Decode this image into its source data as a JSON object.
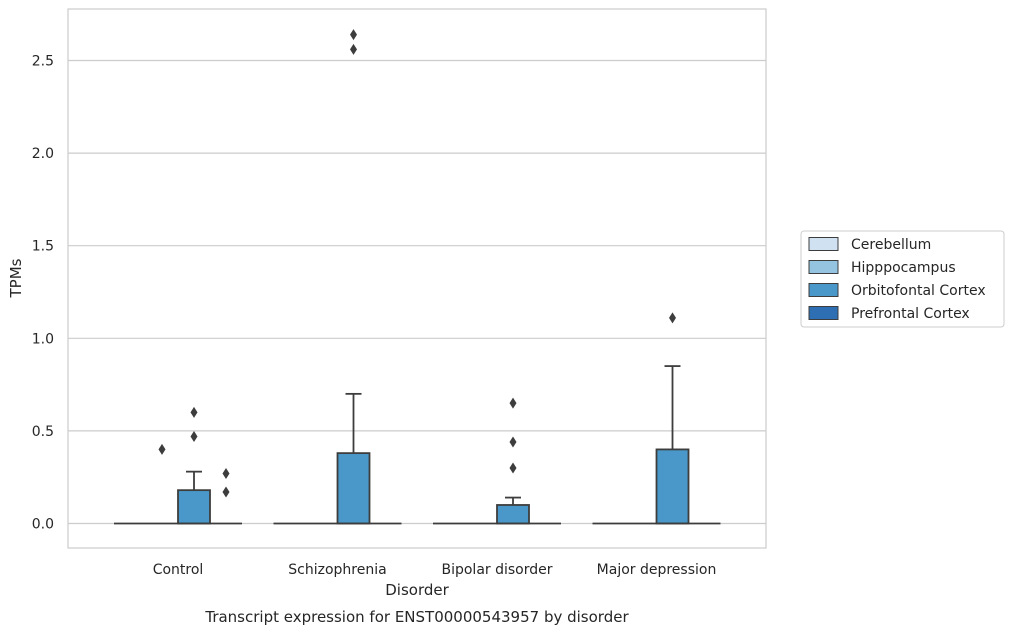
{
  "chart_data": {
    "type": "box",
    "title": "Transcript expression for ENST00000543957 by disorder",
    "xlabel": "Disorder",
    "ylabel": "TPMs",
    "ylim": [
      -0.13,
      2.78
    ],
    "yticks": [
      {
        "value": 0.0,
        "label": "0.0"
      },
      {
        "value": 0.5,
        "label": "0.5"
      },
      {
        "value": 1.0,
        "label": "1.0"
      },
      {
        "value": 1.5,
        "label": "1.5"
      },
      {
        "value": 2.0,
        "label": "2.0"
      },
      {
        "value": 2.5,
        "label": "2.5"
      }
    ],
    "grid": "horizontal",
    "legend_position": "right",
    "categories": [
      "Control",
      "Schizophrenia",
      "Bipolar disorder",
      "Major depression"
    ],
    "series": [
      {
        "name": "Cerebellum",
        "color": "#d0e1f2",
        "boxes": [
          {
            "q1": 0,
            "median": 0,
            "q3": 0,
            "whisker_low": 0,
            "whisker_high": 0,
            "outliers": []
          },
          {
            "q1": 0,
            "median": 0,
            "q3": 0,
            "whisker_low": 0,
            "whisker_high": 0,
            "outliers": []
          },
          {
            "q1": 0,
            "median": 0,
            "q3": 0,
            "whisker_low": 0,
            "whisker_high": 0,
            "outliers": []
          },
          {
            "q1": 0,
            "median": 0,
            "q3": 0,
            "whisker_low": 0,
            "whisker_high": 0,
            "outliers": []
          }
        ]
      },
      {
        "name": "Hipppocampus",
        "color": "#94c4df",
        "boxes": [
          {
            "q1": 0,
            "median": 0,
            "q3": 0,
            "whisker_low": 0,
            "whisker_high": 0,
            "outliers": [
              0.4
            ]
          },
          {
            "q1": 0,
            "median": 0,
            "q3": 0,
            "whisker_low": 0,
            "whisker_high": 0,
            "outliers": []
          },
          {
            "q1": 0,
            "median": 0,
            "q3": 0,
            "whisker_low": 0,
            "whisker_high": 0,
            "outliers": []
          },
          {
            "q1": 0,
            "median": 0,
            "q3": 0,
            "whisker_low": 0,
            "whisker_high": 0,
            "outliers": []
          }
        ]
      },
      {
        "name": "Orbitofontal Cortex",
        "color": "#4a98c9",
        "boxes": [
          {
            "q1": 0,
            "median": 0,
            "q3": 0.18,
            "whisker_low": 0,
            "whisker_high": 0.28,
            "outliers": [
              0.47,
              0.6
            ]
          },
          {
            "q1": 0,
            "median": 0,
            "q3": 0.38,
            "whisker_low": 0,
            "whisker_high": 0.7,
            "outliers": [
              2.56,
              2.64
            ]
          },
          {
            "q1": 0,
            "median": 0,
            "q3": 0.1,
            "whisker_low": 0,
            "whisker_high": 0.14,
            "outliers": [
              0.3,
              0.44,
              0.65
            ]
          },
          {
            "q1": 0,
            "median": 0,
            "q3": 0.4,
            "whisker_low": 0,
            "whisker_high": 0.85,
            "outliers": [
              1.11
            ]
          }
        ]
      },
      {
        "name": "Prefrontal Cortex",
        "color": "#2e6fb3",
        "boxes": [
          {
            "q1": 0,
            "median": 0,
            "q3": 0,
            "whisker_low": 0,
            "whisker_high": 0,
            "outliers": [
              0.17,
              0.27
            ]
          },
          {
            "q1": 0,
            "median": 0,
            "q3": 0,
            "whisker_low": 0,
            "whisker_high": 0,
            "outliers": []
          },
          {
            "q1": 0,
            "median": 0,
            "q3": 0,
            "whisker_low": 0,
            "whisker_high": 0,
            "outliers": []
          },
          {
            "q1": 0,
            "median": 0,
            "q3": 0,
            "whisker_low": 0,
            "whisker_high": 0,
            "outliers": []
          }
        ]
      }
    ],
    "colors": {
      "line": "#3d3d3d",
      "grid": "#cccccc",
      "frame": "#cccccc",
      "text": "#262626"
    }
  }
}
